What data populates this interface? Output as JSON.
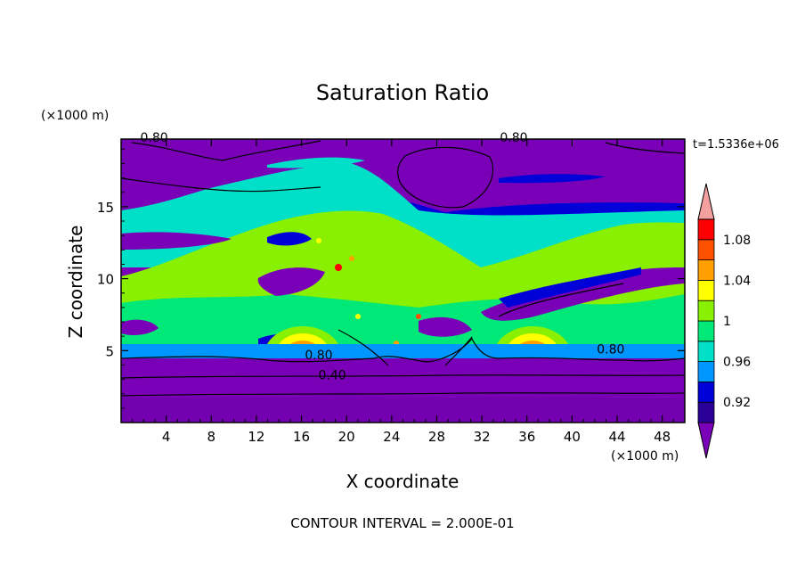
{
  "chart_data": {
    "type": "heatmap",
    "title": "Saturation Ratio",
    "xlabel": "X coordinate",
    "ylabel": "Z coordinate",
    "x_unit": "(×1000 m)",
    "y_unit": "(×1000 m)",
    "xlim": [
      0,
      50
    ],
    "ylim": [
      0,
      19.7
    ],
    "x_ticks": [
      4,
      8,
      12,
      16,
      20,
      24,
      28,
      32,
      36,
      40,
      44,
      48
    ],
    "y_ticks": [
      5,
      10,
      15
    ],
    "time_label": "t=1.5336e+06",
    "footer": "CONTOUR INTERVAL = 2.000E-01",
    "colorbar": {
      "levels": [
        0.9,
        0.92,
        0.94,
        0.96,
        0.98,
        1.0,
        1.02,
        1.04,
        1.06,
        1.08,
        1.1
      ],
      "labels": [
        "0.92",
        "0.96",
        "1",
        "1.04",
        "1.08"
      ],
      "colors": [
        "#7a00b8",
        "#2a0098",
        "#0000d8",
        "#0096ff",
        "#00e0c8",
        "#00e878",
        "#88f000",
        "#ffff00",
        "#ffa000",
        "#ff5000",
        "#ff0000",
        "#f4a0a0"
      ]
    },
    "contour_labels": [
      {
        "text": "0.80",
        "x": 1.7,
        "z": 19.5
      },
      {
        "text": "0.80",
        "x": 33.6,
        "z": 19.5
      },
      {
        "text": "0.80",
        "x": 16.3,
        "z": 4.4
      },
      {
        "text": "0.40",
        "x": 17.5,
        "z": 3.0
      },
      {
        "text": "0.80",
        "x": 42.2,
        "z": 4.8
      }
    ]
  }
}
